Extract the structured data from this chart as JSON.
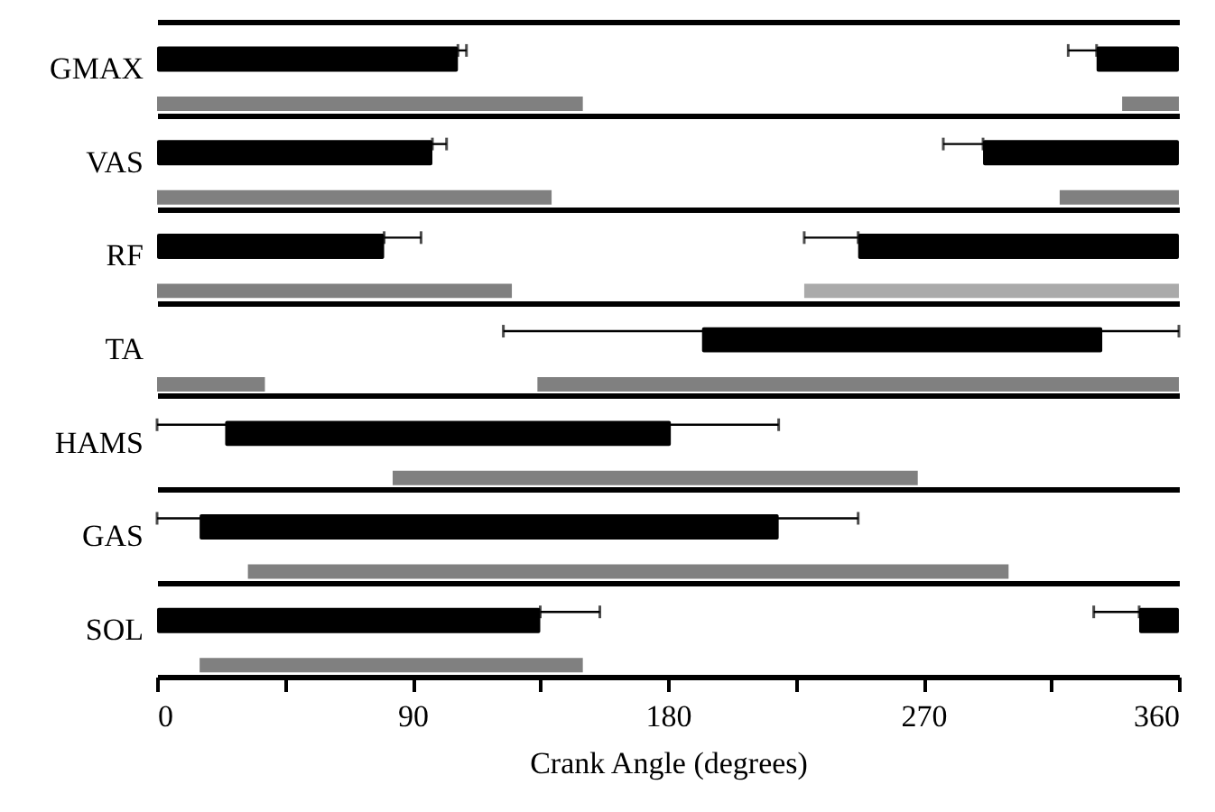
{
  "chart_data": {
    "type": "bar",
    "orientation": "horizontal",
    "xlabel": "Crank Angle (degrees)",
    "categories": [
      "GMAX",
      "VAS",
      "RF",
      "TA",
      "HAMS",
      "GAS",
      "SOL"
    ],
    "series": [
      {
        "color": "#000000",
        "base": [
          0,
          0,
          0,
          192,
          24,
          15,
          0
        ],
        "values": [
          106,
          97,
          80,
          141,
          157,
          204,
          135
        ],
        "errors": [
          [
            106,
            109
          ],
          [
            97,
            102
          ],
          [
            80,
            93
          ],
          [
            122,
            360
          ],
          [
            0,
            219
          ],
          [
            0,
            247
          ],
          [
            135,
            156
          ]
        ]
      },
      {
        "color": "#000000",
        "base": [
          331,
          291,
          247,
          null,
          null,
          null,
          346
        ],
        "values": [
          29,
          69,
          113,
          null,
          null,
          null,
          14
        ],
        "errors": [
          [
            321,
            331
          ],
          [
            277,
            291
          ],
          [
            228,
            247
          ],
          null,
          null,
          null,
          [
            330,
            346
          ]
        ]
      },
      {
        "color": "#808080",
        "base": [
          0,
          0,
          0,
          0,
          83,
          32,
          15
        ],
        "values": [
          150,
          139,
          125,
          38,
          185,
          268,
          135
        ]
      },
      {
        "color": "#808080",
        "colors": [
          null,
          null,
          "#aaaaaa",
          null,
          null,
          null,
          null
        ],
        "base": [
          340,
          318,
          228,
          134,
          null,
          null,
          null
        ],
        "values": [
          20,
          42,
          132,
          226,
          null,
          null,
          null
        ]
      }
    ],
    "xlim": [
      0,
      360
    ],
    "xticks": [
      0,
      {
        "value": 45,
        "label": null
      },
      90,
      {
        "value": 135,
        "label": null
      },
      180,
      {
        "value": 225,
        "label": null
      },
      270,
      {
        "value": 315,
        "label": null
      },
      360
    ],
    "grid": "y"
  }
}
